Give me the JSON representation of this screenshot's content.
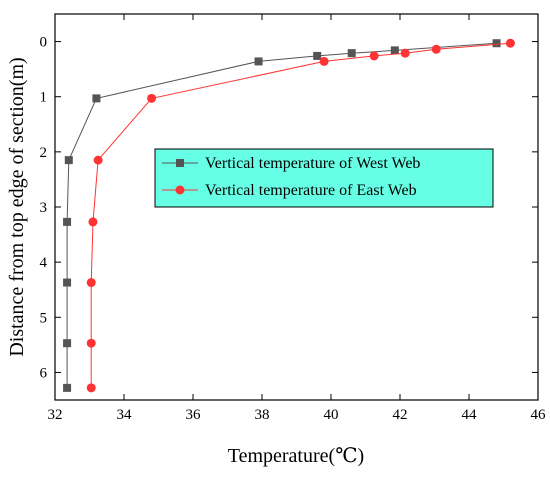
{
  "chart_data": {
    "type": "line",
    "title": "",
    "xlabel": "Temperature(℃)",
    "ylabel": "Distance from top edge of section(m)",
    "xlim": [
      32,
      46
    ],
    "ylim": [
      -0.5,
      6.5
    ],
    "y_inverted": true,
    "x_ticks": [
      32,
      34,
      36,
      38,
      40,
      42,
      44,
      46
    ],
    "y_ticks": [
      0,
      1,
      2,
      3,
      4,
      5,
      6
    ],
    "grid": false,
    "legend_position": "upper-center",
    "legend_background": "#66ffe6",
    "series": [
      {
        "name": "Vertical temperature of West Web",
        "color": "#555555",
        "marker": "square",
        "points": [
          {
            "x": 32.35,
            "y": 6.28
          },
          {
            "x": 32.35,
            "y": 5.47
          },
          {
            "x": 32.35,
            "y": 4.37
          },
          {
            "x": 32.35,
            "y": 3.27
          },
          {
            "x": 32.4,
            "y": 2.15
          },
          {
            "x": 33.2,
            "y": 1.03
          },
          {
            "x": 37.9,
            "y": 0.36
          },
          {
            "x": 39.6,
            "y": 0.26
          },
          {
            "x": 40.6,
            "y": 0.21
          },
          {
            "x": 41.85,
            "y": 0.16
          },
          {
            "x": 44.8,
            "y": 0.03
          }
        ]
      },
      {
        "name": "Vertical temperature of East Web",
        "color": "#ff3333",
        "marker": "circle",
        "points": [
          {
            "x": 33.05,
            "y": 6.28
          },
          {
            "x": 33.05,
            "y": 5.47
          },
          {
            "x": 33.05,
            "y": 4.37
          },
          {
            "x": 33.1,
            "y": 3.27
          },
          {
            "x": 33.25,
            "y": 2.15
          },
          {
            "x": 34.8,
            "y": 1.03
          },
          {
            "x": 39.8,
            "y": 0.36
          },
          {
            "x": 41.25,
            "y": 0.26
          },
          {
            "x": 42.15,
            "y": 0.21
          },
          {
            "x": 43.05,
            "y": 0.14
          },
          {
            "x": 45.2,
            "y": 0.03
          }
        ]
      }
    ]
  }
}
